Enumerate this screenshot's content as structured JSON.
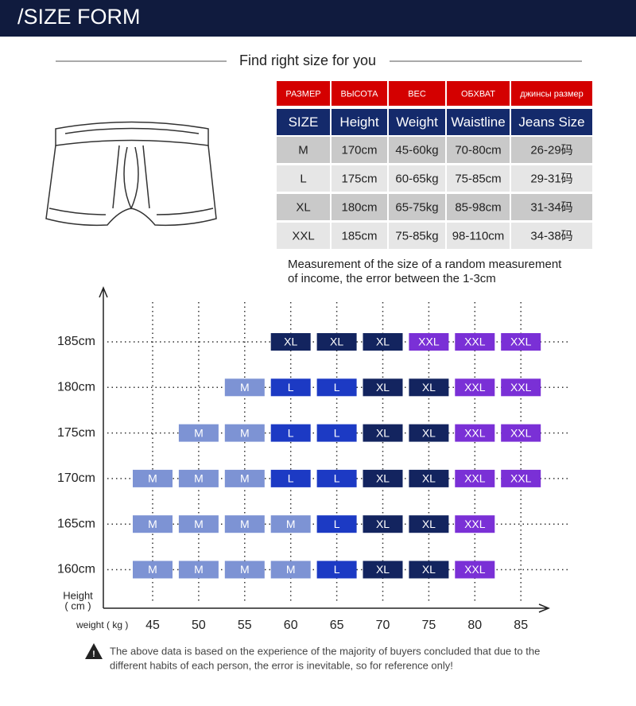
{
  "header": {
    "title": "/SIZE FORM"
  },
  "subtitle": "Find right size for you",
  "table": {
    "headers_local": [
      "РАЗМЕР",
      "ВЫСОТА",
      "ВЕС",
      "ОБХВАТ",
      "джинсы размер"
    ],
    "headers": [
      "SIZE",
      "Height",
      "Weight",
      "Waistline",
      "Jeans Size"
    ],
    "rows": [
      [
        "M",
        "170cm",
        "45-60kg",
        "70-80cm",
        "26-29码"
      ],
      [
        "L",
        "175cm",
        "60-65kg",
        "75-85cm",
        "29-31码"
      ],
      [
        "XL",
        "180cm",
        "65-75kg",
        "85-98cm",
        "31-34码"
      ],
      [
        "XXL",
        "185cm",
        "75-85kg",
        "98-110cm",
        "34-38码"
      ]
    ]
  },
  "note": [
    "Measurement of the size of a random measurement",
    "of income, the error between the 1-3cm"
  ],
  "grid": {
    "y_label": [
      "Height",
      "( cm )"
    ],
    "x_label": "weight ( kg )",
    "weights": [
      "45",
      "50",
      "55",
      "60",
      "65",
      "70",
      "75",
      "80",
      "85"
    ],
    "colors": {
      "M": "#7d93d4",
      "L": "#1c3ac4",
      "XL": "#13245f",
      "XXL": "#7a30d6"
    },
    "rows": [
      {
        "height": "185cm",
        "cells": [
          null,
          null,
          null,
          "XL",
          "XL",
          "XL",
          "XXL",
          "XXL",
          "XXL"
        ]
      },
      {
        "height": "180cm",
        "cells": [
          null,
          null,
          "M",
          "L",
          "L",
          "XL",
          "XL",
          "XXL",
          "XXL"
        ]
      },
      {
        "height": "175cm",
        "cells": [
          null,
          "M",
          "M",
          "L",
          "L",
          "XL",
          "XL",
          "XXL",
          "XXL"
        ]
      },
      {
        "height": "170cm",
        "cells": [
          "M",
          "M",
          "M",
          "L",
          "L",
          "XL",
          "XL",
          "XXL",
          "XXL"
        ]
      },
      {
        "height": "165cm",
        "cells": [
          "M",
          "M",
          "M",
          "M",
          "L",
          "XL",
          "XL",
          "XXL",
          null
        ]
      },
      {
        "height": "160cm",
        "cells": [
          "M",
          "M",
          "M",
          "M",
          "L",
          "XL",
          "XL",
          "XXL",
          null
        ]
      }
    ]
  },
  "footer": [
    "The above data is based on the experience of the majority of buyers concluded that due to the",
    "different habits of each person, the error is inevitable, so for reference only!"
  ]
}
